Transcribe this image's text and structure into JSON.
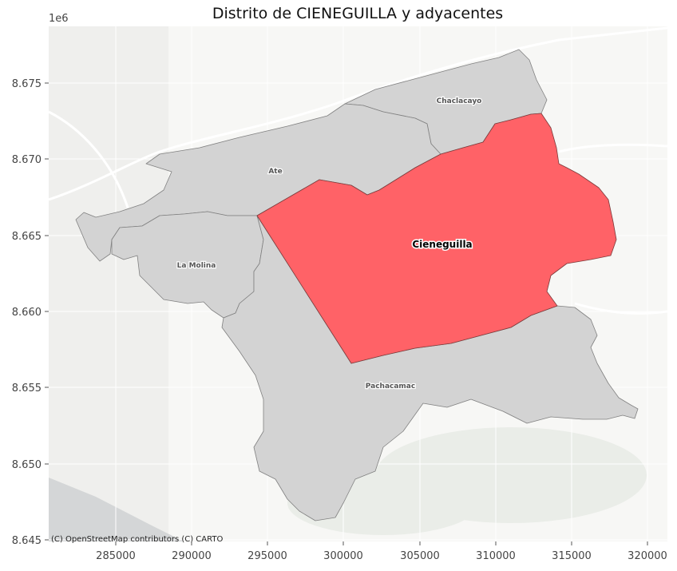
{
  "title": "Distrito de CIENEGUILLA y adyacentes",
  "axis": {
    "offset_label": "1e6",
    "x_ticks": [
      "285000",
      "290000",
      "295000",
      "300000",
      "305000",
      "310000",
      "315000",
      "320000"
    ],
    "y_ticks": [
      "8.675",
      "8.670",
      "8.665",
      "8.660",
      "8.655",
      "8.650",
      "8.645"
    ]
  },
  "districts": {
    "highlighted": "Cieneguilla",
    "neighbors": [
      "Chaclacayo",
      "Ate",
      "La Molina",
      "Pachacamac"
    ]
  },
  "colors": {
    "highlight_fill": "#ff5a5f",
    "neighbor_fill": "#d3d3d3",
    "basemap": "#f7f7f5",
    "sea": "#d4d6d7"
  },
  "attribution": "(C) OpenStreetMap contributors (C) CARTO"
}
